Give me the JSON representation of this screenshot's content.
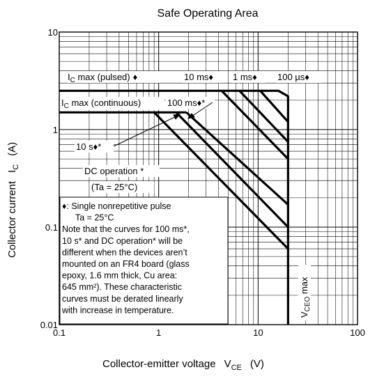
{
  "chart_data": {
    "type": "line",
    "title": "Safe Operating Area",
    "xlabel": "Collector-emitter voltage",
    "xlabel_symbol": "V",
    "xlabel_sub": "CE",
    "xlabel_unit": "(V)",
    "ylabel": "Collector current",
    "ylabel_symbol": "I",
    "ylabel_sub": "C",
    "ylabel_unit": "(A)",
    "xscale": "log",
    "yscale": "log",
    "xlim": [
      0.1,
      100
    ],
    "ylim": [
      0.01,
      10
    ],
    "grid": true,
    "x_ticks": [
      {
        "value": 0.1,
        "label": "0.1"
      },
      {
        "value": 1,
        "label": "1"
      },
      {
        "value": 10,
        "label": "10"
      },
      {
        "value": 100,
        "label": "100"
      }
    ],
    "y_ticks": [
      {
        "value": 0.01,
        "label": "0.01"
      },
      {
        "value": 0.1,
        "label": "0.1"
      },
      {
        "value": 1,
        "label": "1"
      },
      {
        "value": 10,
        "label": "10"
      }
    ],
    "series": [
      {
        "name": "IC max (pulsed)",
        "points": [
          [
            0.1,
            2.5
          ],
          [
            16,
            2.5
          ],
          [
            20,
            2.2
          ],
          [
            20,
            0.01
          ]
        ]
      },
      {
        "name": "100 µs",
        "points": [
          [
            10.5,
            2.5
          ],
          [
            20,
            1.2
          ]
        ]
      },
      {
        "name": "1 ms",
        "points": [
          [
            6.5,
            2.5
          ],
          [
            20,
            0.75
          ]
        ]
      },
      {
        "name": "10 ms",
        "points": [
          [
            4.3,
            2.5
          ],
          [
            20,
            0.5
          ]
        ]
      },
      {
        "name": "IC max (continuous)",
        "points": [
          [
            0.1,
            1.5
          ],
          [
            1.9,
            1.5
          ]
        ]
      },
      {
        "name": "100 ms*",
        "points": [
          [
            1.9,
            1.5
          ],
          [
            20,
            0.17
          ]
        ]
      },
      {
        "name": "10 s*",
        "points": [
          [
            1.5,
            1.5
          ],
          [
            20,
            0.1
          ]
        ]
      },
      {
        "name": "DC operation*",
        "points": [
          [
            0.9,
            1.5
          ],
          [
            20,
            0.06
          ]
        ]
      }
    ],
    "annotations": {
      "ic_pulsed": {
        "main": "I",
        "sub": "C",
        "rest": " max (pulsed)",
        "mark": "♦"
      },
      "ic_continuous": {
        "main": "I",
        "sub": "C",
        "rest": " max (continuous)"
      },
      "t_10ms": "10 ms♦",
      "t_1ms": "1 ms♦",
      "t_100us": "100 µs♦",
      "t_100ms": "100 ms♦*",
      "t_10s": "10 s♦*",
      "dc_operation": "DC operation *",
      "dc_temp": "(Ta = 25°C)",
      "vceo": {
        "main": "V",
        "sub": "CEO",
        "rest": " max"
      }
    },
    "note_lines": [
      "♦: Single nonrepetitive pulse",
      "Ta = 25°C",
      "Note that the curves for 100 ms*,",
      "10 s* and DC operation* will be",
      "different when the devices aren’t",
      "mounted on an FR4 board (glass",
      "epoxy, 1.6 mm thick, Cu area:",
      "645 mm²). These characteristic",
      "curves must be derated linearly",
      "with increase in temperature."
    ]
  }
}
